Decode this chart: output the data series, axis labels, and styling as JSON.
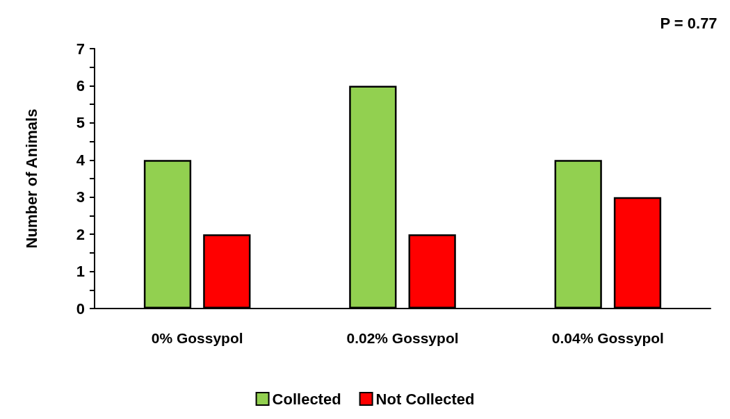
{
  "chart_data": {
    "type": "bar",
    "ylabel": "Number of Animals",
    "categories": [
      "0% Gossypol",
      "0.02% Gossypol",
      "0.04% Gossypol"
    ],
    "series": [
      {
        "name": "Collected",
        "color": "#92d050",
        "values": [
          4,
          6,
          4
        ]
      },
      {
        "name": "Not Collected",
        "color": "#ff0000",
        "values": [
          2,
          2,
          3
        ]
      }
    ],
    "ylim": [
      0,
      7
    ],
    "yticks": [
      0,
      1,
      2,
      3,
      4,
      5,
      6,
      7
    ],
    "grid": false,
    "legend": "bottom",
    "annotations": [
      "P = 0.77"
    ]
  }
}
